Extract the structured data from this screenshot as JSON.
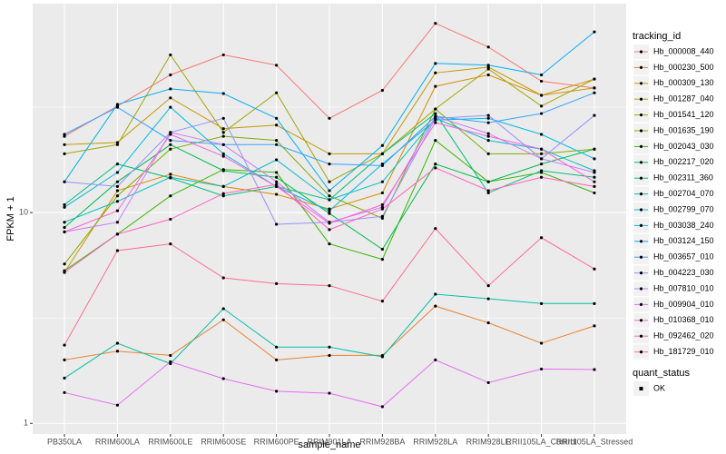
{
  "chart_data": {
    "type": "line",
    "x_label": "sample_name",
    "y_label": "FPKM + 1",
    "legend_title": "tracking_id",
    "shape_legend_title": "quant_status",
    "shape_legend_items": [
      "OK"
    ],
    "log_y": true,
    "grid": true,
    "legend_position": "right",
    "categories": [
      "PB350LA",
      "RRIM600LA",
      "RRIM600LE",
      "RRIM600SE",
      "RRIM600PE",
      "RRIM901LA",
      "RRIM928BA",
      "RRIM928LA",
      "RRIM928LE",
      "RRII105LA_Control",
      "RRII105LA_Stressed"
    ],
    "ylim": [
      0.89,
      98
    ],
    "yticks": [
      1,
      10
    ],
    "series": [
      {
        "name": "Hb_000008_440",
        "color": "#F8766D",
        "values": [
          23,
          32,
          45,
          56,
          50,
          28,
          38,
          79,
          61,
          42,
          39
        ]
      },
      {
        "name": "Hb_000230_500",
        "color": "#EA8331",
        "values": [
          2.0,
          2.2,
          2.1,
          3.1,
          2.0,
          2.1,
          2.1,
          3.6,
          3.0,
          2.4,
          2.9
        ]
      },
      {
        "name": "Hb_000309_130",
        "color": "#D89000",
        "values": [
          5.2,
          12.7,
          15.2,
          13.3,
          12.2,
          10.4,
          12.4,
          39.7,
          45,
          36,
          43
        ]
      },
      {
        "name": "Hb_001287_040",
        "color": "#C09B00",
        "values": [
          21,
          21.5,
          35,
          25,
          26,
          19,
          19,
          46,
          49,
          36,
          39
        ]
      },
      {
        "name": "Hb_001541_120",
        "color": "#A3A500",
        "values": [
          19,
          21,
          56,
          24,
          37,
          14,
          19,
          31,
          48,
          32,
          43
        ]
      },
      {
        "name": "Hb_001635_190",
        "color": "#7CAE00",
        "values": [
          5.7,
          12,
          20,
          23,
          22,
          12,
          9.4,
          31,
          19,
          19,
          20
        ]
      },
      {
        "name": "Hb_002043_030",
        "color": "#39B600",
        "values": [
          5.3,
          7.9,
          12,
          16,
          15.5,
          7.1,
          6.0,
          22,
          14,
          15.5,
          12.4
        ]
      },
      {
        "name": "Hb_002217_020",
        "color": "#00BB4E",
        "values": [
          8.5,
          14,
          21,
          15.8,
          14.7,
          9.9,
          6.7,
          17,
          14,
          17,
          20
        ]
      },
      {
        "name": "Hb_002311_360",
        "color": "#00BF7D",
        "values": [
          10.9,
          17,
          14.6,
          12,
          13.3,
          11.5,
          19,
          29.5,
          12.4,
          15.8,
          14.7
        ]
      },
      {
        "name": "Hb_002704_070",
        "color": "#00C1A3",
        "values": [
          1.64,
          2.4,
          1.92,
          3.5,
          2.3,
          2.3,
          2.07,
          4.1,
          3.9,
          3.7,
          3.7
        ]
      },
      {
        "name": "Hb_002799_070",
        "color": "#00BFC4",
        "values": [
          9.0,
          11.3,
          14.7,
          13.3,
          17.8,
          11.5,
          14,
          28,
          22,
          20,
          15.8
        ]
      },
      {
        "name": "Hb_003038_240",
        "color": "#00BAE0",
        "values": [
          10.6,
          15.5,
          31.6,
          19,
          13.3,
          10.2,
          17,
          27.5,
          28,
          23.5,
          18
        ]
      },
      {
        "name": "Hb_003124_150",
        "color": "#00B0F6",
        "values": [
          14,
          32.6,
          38.6,
          36.7,
          28,
          12.7,
          20.8,
          51,
          50,
          45,
          72
        ]
      },
      {
        "name": "Hb_003657_010",
        "color": "#35A2FF",
        "values": [
          23.5,
          31.6,
          22,
          21,
          21,
          17,
          16.7,
          28.6,
          26.7,
          29.5,
          37
        ]
      },
      {
        "name": "Hb_004223_030",
        "color": "#9590FF",
        "values": [
          14,
          13.3,
          24,
          28,
          8.8,
          9.0,
          9.6,
          28,
          28.9,
          18,
          28.9
        ]
      },
      {
        "name": "Hb_007810_010",
        "color": "#C77CFF",
        "values": [
          8.1,
          9.0,
          24,
          21,
          14,
          9.0,
          10.6,
          28.6,
          23.7,
          18,
          15.5
        ]
      },
      {
        "name": "Hb_009904_010",
        "color": "#E76BF3",
        "values": [
          1.4,
          1.22,
          1.96,
          1.63,
          1.42,
          1.39,
          1.2,
          2.0,
          1.56,
          1.81,
          1.8
        ]
      },
      {
        "name": "Hb_010368_010",
        "color": "#FA62DB",
        "values": [
          8.1,
          10.2,
          23.5,
          18.5,
          13.3,
          8.9,
          10.9,
          26.7,
          23,
          20,
          14
        ]
      },
      {
        "name": "Hb_092462_020",
        "color": "#FF62BC",
        "values": [
          5.2,
          7.9,
          9.3,
          12.3,
          13.6,
          8.3,
          10.4,
          16.3,
          12.7,
          14.7,
          13.3
        ]
      },
      {
        "name": "Hb_181729_010",
        "color": "#FF6C91",
        "values": [
          2.35,
          6.6,
          7.1,
          4.9,
          4.6,
          4.5,
          3.8,
          8.4,
          4.5,
          7.6,
          5.4
        ]
      }
    ]
  }
}
